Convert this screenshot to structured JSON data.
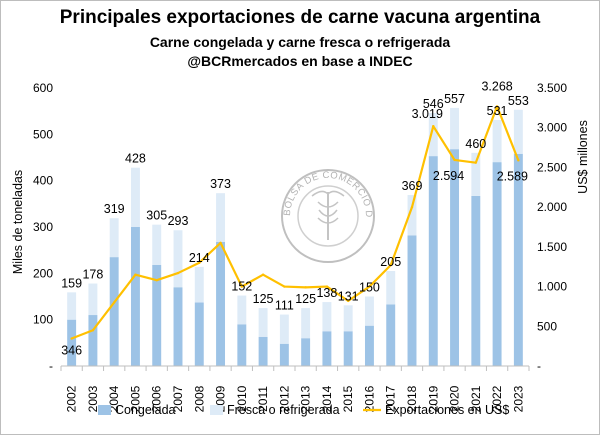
{
  "chart_data": {
    "type": "bar",
    "title": "Principales exportaciones de carne vacuna argentina",
    "subtitle": "Carne congelada y carne fresca o refrigerada",
    "source": "@BCRmercados en base a INDEC",
    "ylabel": "Miles de toneladas",
    "y2label": "US$ millones",
    "ylim": [
      0,
      600
    ],
    "y2lim": [
      0,
      3500
    ],
    "yticks": [
      "-",
      "100",
      "200",
      "300",
      "400",
      "500",
      "600"
    ],
    "y2ticks": [
      "-",
      "500",
      "1.000",
      "1.500",
      "2.000",
      "2.500",
      "3.000",
      "3.500"
    ],
    "categories": [
      "2002",
      "2003",
      "2004",
      "2005",
      "2006",
      "2007",
      "2008",
      "2009",
      "2010",
      "2011",
      "2012",
      "2013",
      "2014",
      "2015",
      "2016",
      "2017",
      "2018",
      "2019",
      "2020",
      "2021",
      "2022",
      "2023"
    ],
    "series": [
      {
        "name": "Congelada",
        "type": "bar",
        "stack": "volumen",
        "color": "#9dc3e6",
        "values": [
          100,
          110,
          235,
          300,
          218,
          170,
          137,
          268,
          90,
          63,
          48,
          60,
          75,
          75,
          87,
          133,
          282,
          453,
          468,
          367,
          440,
          458
        ]
      },
      {
        "name": "Fresca o refrigerada",
        "type": "bar",
        "stack": "volumen",
        "color": "#deebf7",
        "values": [
          59,
          68,
          84,
          128,
          87,
          123,
          77,
          105,
          62,
          62,
          63,
          65,
          63,
          56,
          63,
          72,
          87,
          93,
          89,
          93,
          91,
          95
        ]
      },
      {
        "name": "Exportaciones en US$",
        "type": "line",
        "axis": "y2",
        "color": "#ffc000",
        "values": [
          346,
          450,
          800,
          1150,
          1080,
          1170,
          1300,
          1550,
          1000,
          1150,
          1000,
          990,
          1000,
          820,
          1000,
          1270,
          2000,
          3019,
          2594,
          2560,
          3268,
          2589
        ]
      }
    ],
    "bar_total_labels": [
      "159",
      "178",
      "319",
      "428",
      "305",
      "293",
      "214",
      "373",
      "152",
      "125",
      "111",
      "125",
      "138",
      "131",
      "150",
      "205",
      "369",
      "546",
      "557",
      "460",
      "531",
      "553"
    ],
    "line_point_labels": [
      {
        "index": 0,
        "text": "346"
      },
      {
        "index": 17,
        "text": "3.019"
      },
      {
        "index": 18,
        "text": "2.594"
      },
      {
        "index": 20,
        "text": "3.268"
      },
      {
        "index": 21,
        "text": "2.589"
      }
    ],
    "legend": {
      "placement": "bottom",
      "items": [
        "Congelada",
        "Fresca o refrigerada",
        "Exportaciones en US$"
      ]
    },
    "watermark": "BOLSA DE COMERCIO DE ROSARIO",
    "grid": false
  }
}
